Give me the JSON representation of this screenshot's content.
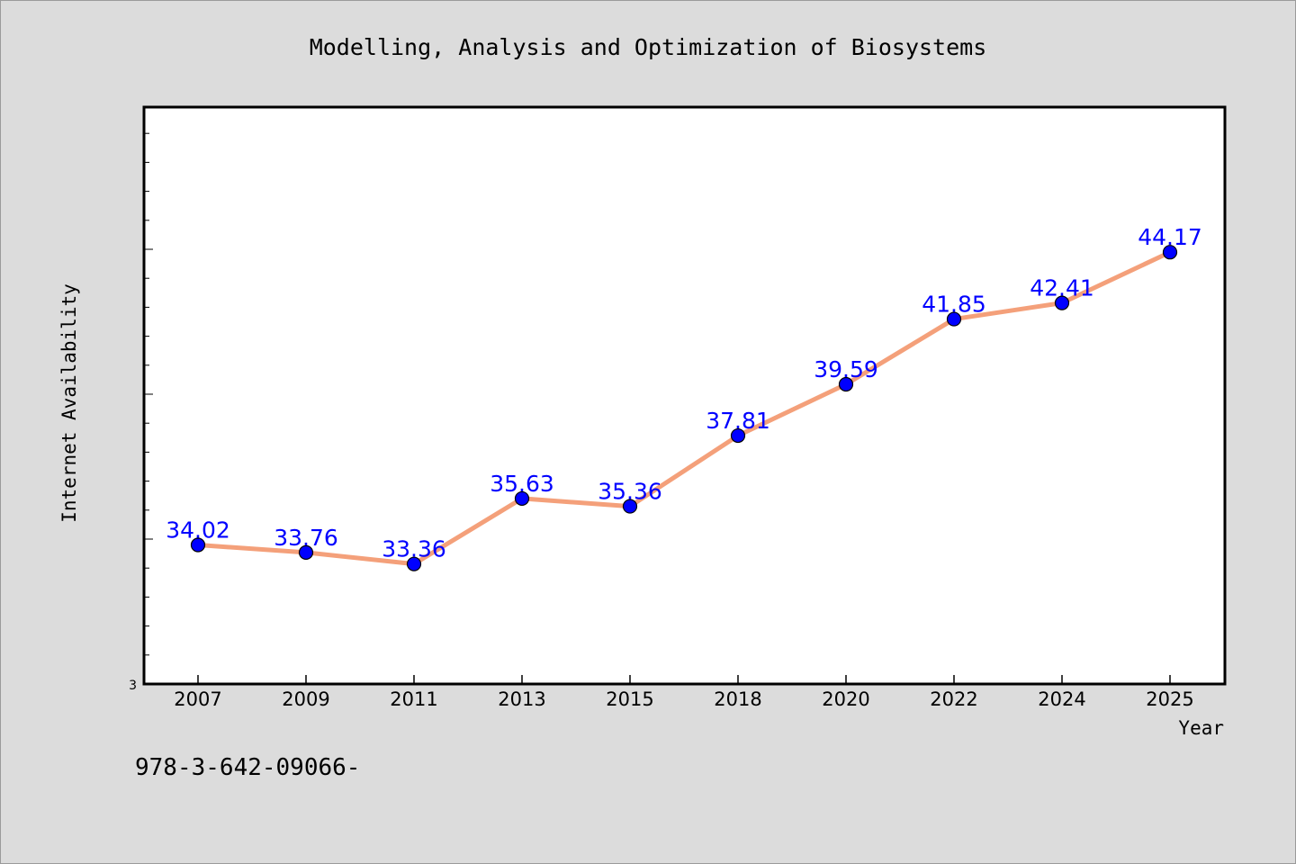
{
  "chart_data": {
    "type": "line",
    "title": "Modelling, Analysis and Optimization of Biosystems",
    "xlabel": "Year",
    "ylabel": "Internet Availability",
    "categories": [
      "2007",
      "2009",
      "2011",
      "2013",
      "2015",
      "2018",
      "2020",
      "2022",
      "2024",
      "2025"
    ],
    "series": [
      {
        "values": [
          34.02,
          33.76,
          33.36,
          35.63,
          35.36,
          37.81,
          39.59,
          41.85,
          42.41,
          44.17
        ],
        "labels": [
          "34.02",
          "33.76",
          "33.36",
          "35.63",
          "35.36",
          "37.81",
          "39.59",
          "41.85",
          "42.41",
          "44.17"
        ]
      }
    ],
    "ytick_labels": [
      "3"
    ],
    "ylim": [
      29.2,
      49.2
    ],
    "grid": false,
    "line_color": "#f4a07a",
    "marker_color": "#0000ff",
    "label_color": "#0000ff"
  },
  "footer_text": "978-3-642-09066-"
}
